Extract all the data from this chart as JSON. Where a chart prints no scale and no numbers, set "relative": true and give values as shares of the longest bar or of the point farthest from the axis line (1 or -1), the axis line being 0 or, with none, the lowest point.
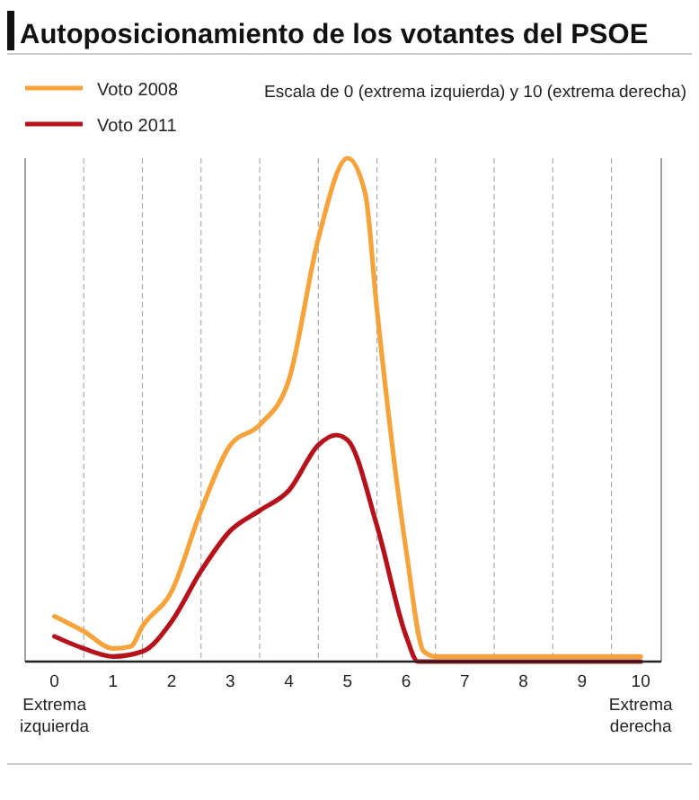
{
  "chart_data": {
    "type": "line",
    "title": "Autoposicionamiento de los votantes del PSOE",
    "subtitle": "Escala de 0 (extrema izquierda) y 10 (extrema derecha)",
    "relative": true,
    "xlim": [
      -0.5,
      10.35
    ],
    "xticks": [
      0,
      {
        "value": 0.5,
        "label": null
      },
      1,
      {
        "value": 1.5,
        "label": null
      },
      2,
      {
        "value": 2.5,
        "label": null
      },
      3,
      {
        "value": 3.5,
        "label": null
      },
      4,
      {
        "value": 4.5,
        "label": null
      },
      5,
      {
        "value": 5.5,
        "label": null
      },
      6,
      {
        "value": 6.5,
        "label": null
      },
      7,
      {
        "value": 7.5,
        "label": null
      },
      8,
      {
        "value": 8.5,
        "label": null
      },
      9,
      {
        "value": 9.5,
        "label": null
      },
      10
    ],
    "grid": "x",
    "legend": "top left",
    "line_style": "solid",
    "marker": "none",
    "annotations": [
      "Extrema izquierda",
      "Extrema derecha"
    ],
    "series": [
      {
        "name": "Voto 2008",
        "color": "#f5a33a",
        "x": [
          0,
          0.5,
          1,
          1.3,
          1.5,
          2,
          2.5,
          3,
          3.5,
          4,
          4.5,
          5,
          5.3,
          5.5,
          6,
          6.3,
          6.5,
          7,
          8,
          9,
          10
        ],
        "values": [
          0.09,
          0.06,
          0.026,
          0.03,
          0.07,
          0.14,
          0.3,
          0.43,
          0.47,
          0.56,
          0.84,
          1,
          0.93,
          0.7,
          0.22,
          0.02,
          0.01,
          0.01,
          0.01,
          0.01,
          0.01
        ]
      },
      {
        "name": "Voto 2011",
        "color": "#b5121b",
        "x": [
          0,
          0.5,
          1,
          1.5,
          2,
          2.5,
          3,
          3.5,
          4,
          4.5,
          4.8,
          5,
          5.5,
          6,
          6.2,
          7,
          8,
          9,
          10
        ],
        "values": [
          0.05,
          0.026,
          0.01,
          0.02,
          0.08,
          0.18,
          0.26,
          0.3,
          0.34,
          0.43,
          0.45,
          0.44,
          0.27,
          0.05,
          0,
          0,
          0,
          0,
          0
        ]
      }
    ]
  }
}
